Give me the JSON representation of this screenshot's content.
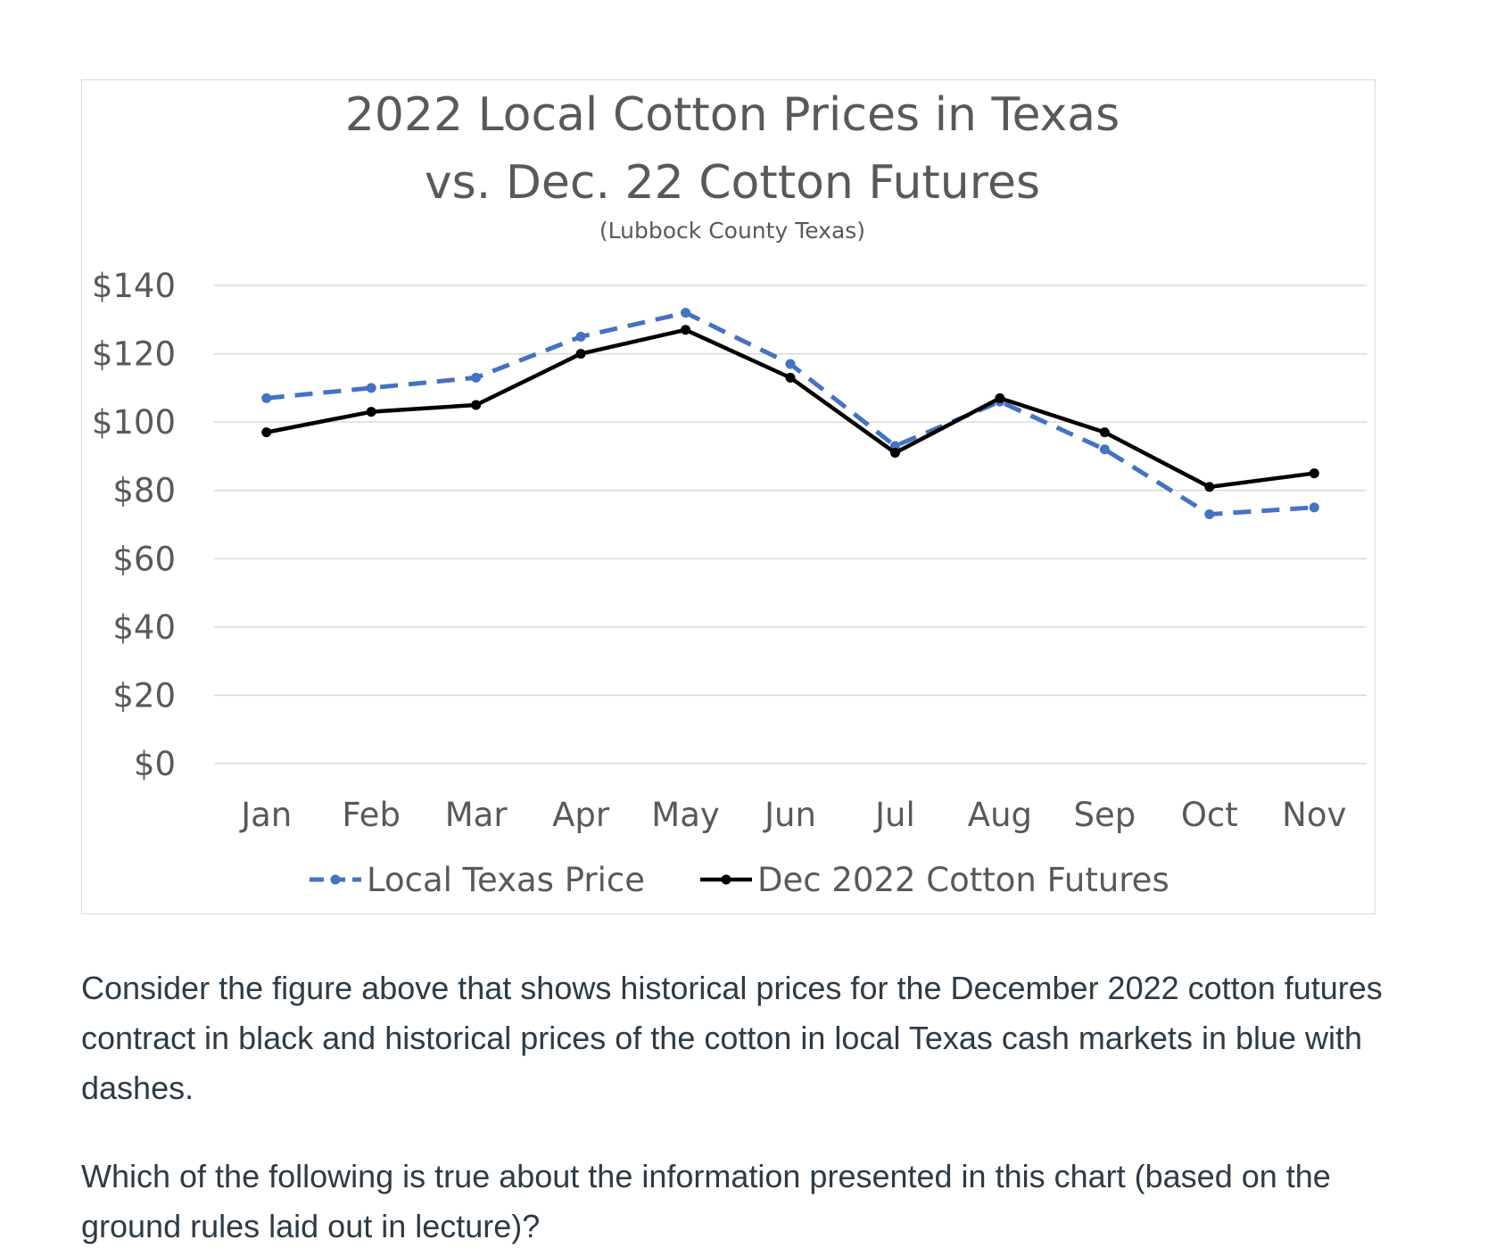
{
  "chart_data": {
    "type": "line",
    "title_lines": [
      "2022 Local Cotton Prices in Texas",
      "vs. Dec. 22 Cotton Futures"
    ],
    "subtitle": "(Lubbock County Texas)",
    "categories": [
      "Jan",
      "Feb",
      "Mar",
      "Apr",
      "May",
      "Jun",
      "Jul",
      "Aug",
      "Sep",
      "Oct",
      "Nov"
    ],
    "y_ticks": [
      0,
      20,
      40,
      60,
      80,
      100,
      120,
      140
    ],
    "y_tick_labels": [
      "$0",
      "$20",
      "$40",
      "$60",
      "$80",
      "$100",
      "$120",
      "$140"
    ],
    "ylim": [
      0,
      140
    ],
    "grid": true,
    "legend_position": "bottom",
    "series": [
      {
        "name": "Local Texas Price",
        "color": "#4472c4",
        "dashed": true,
        "values": [
          107,
          110,
          113,
          125,
          132,
          117,
          93,
          106,
          92,
          73,
          75
        ]
      },
      {
        "name": "Dec 2022 Cotton Futures",
        "color": "#000000",
        "dashed": false,
        "values": [
          97,
          103,
          105,
          120,
          127,
          113,
          91,
          107,
          97,
          81,
          85
        ]
      }
    ]
  },
  "question": {
    "intro": "Consider the figure above that shows historical prices for the December 2022 cotton futures contract in black and historical prices of the cotton in local Texas cash markets in blue with dashes.",
    "prompt": "Which of the following is true about the information presented in this chart (based on the ground rules laid out in lecture)?"
  }
}
